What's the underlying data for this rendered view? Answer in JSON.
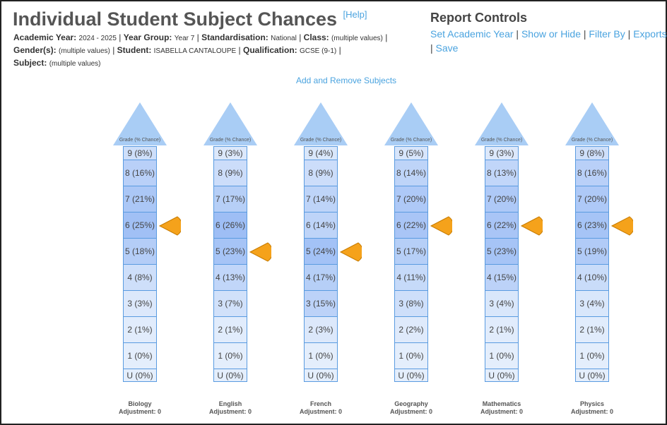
{
  "header": {
    "title": "Individual Student Subject Chances",
    "help_label": "[Help]"
  },
  "filters": {
    "academic_year_label": "Academic Year:",
    "academic_year": "2024 - 2025",
    "year_group_label": "Year Group:",
    "year_group": "Year 7",
    "standardisation_label": "Standardisation:",
    "standardisation": "National",
    "class_label": "Class:",
    "class": "(multiple values)",
    "gender_label": "Gender(s):",
    "gender": "(multiple values)",
    "student_label": "Student:",
    "student": "ISABELLA CANTALOUPE",
    "qualification_label": "Qualification:",
    "qualification": "GCSE (9-1)",
    "subject_label": "Subject:",
    "subject": "(multiple values)",
    "separator": "|"
  },
  "controls": {
    "title": "Report Controls",
    "links": [
      "Set Academic Year",
      "Show or Hide",
      "Filter By",
      "Exports",
      "Save"
    ]
  },
  "add_remove_label": "Add and Remove Subjects",
  "arrow_label": "Grade (% Chance)",
  "colors": {
    "accent_link": "#4aa3df",
    "arrow_fill": "#a9cdf5",
    "cell_border": "#5a9be0",
    "marker_fill": "#f5a21b",
    "marker_stroke": "#c77b00"
  },
  "subjects": [
    {
      "name": "Biology",
      "adjustment": "Adjustment: 0",
      "target_grade": "6",
      "grades": [
        {
          "grade": "9",
          "label": "9 (8%)",
          "pct": 8
        },
        {
          "grade": "8",
          "label": "8 (16%)",
          "pct": 16
        },
        {
          "grade": "7",
          "label": "7 (21%)",
          "pct": 21
        },
        {
          "grade": "6",
          "label": "6 (25%)",
          "pct": 25
        },
        {
          "grade": "5",
          "label": "5 (18%)",
          "pct": 18
        },
        {
          "grade": "4",
          "label": "4 (8%)",
          "pct": 8
        },
        {
          "grade": "3",
          "label": "3 (3%)",
          "pct": 3
        },
        {
          "grade": "2",
          "label": "2 (1%)",
          "pct": 1
        },
        {
          "grade": "1",
          "label": "1 (0%)",
          "pct": 0
        },
        {
          "grade": "U",
          "label": "U (0%)",
          "pct": 0
        }
      ]
    },
    {
      "name": "English",
      "adjustment": "Adjustment: 0",
      "target_grade": "5",
      "grades": [
        {
          "grade": "9",
          "label": "9 (3%)",
          "pct": 3
        },
        {
          "grade": "8",
          "label": "8 (9%)",
          "pct": 9
        },
        {
          "grade": "7",
          "label": "7 (17%)",
          "pct": 17
        },
        {
          "grade": "6",
          "label": "6 (26%)",
          "pct": 26
        },
        {
          "grade": "5",
          "label": "5 (23%)",
          "pct": 23
        },
        {
          "grade": "4",
          "label": "4 (13%)",
          "pct": 13
        },
        {
          "grade": "3",
          "label": "3 (7%)",
          "pct": 7
        },
        {
          "grade": "2",
          "label": "2 (1%)",
          "pct": 1
        },
        {
          "grade": "1",
          "label": "1 (0%)",
          "pct": 0
        },
        {
          "grade": "U",
          "label": "U (0%)",
          "pct": 0
        }
      ]
    },
    {
      "name": "French",
      "adjustment": "Adjustment: 0",
      "target_grade": "5",
      "grades": [
        {
          "grade": "9",
          "label": "9 (4%)",
          "pct": 4
        },
        {
          "grade": "8",
          "label": "8 (9%)",
          "pct": 9
        },
        {
          "grade": "7",
          "label": "7 (14%)",
          "pct": 14
        },
        {
          "grade": "6",
          "label": "6 (14%)",
          "pct": 14
        },
        {
          "grade": "5",
          "label": "5 (24%)",
          "pct": 24
        },
        {
          "grade": "4",
          "label": "4 (17%)",
          "pct": 17
        },
        {
          "grade": "3",
          "label": "3 (15%)",
          "pct": 15
        },
        {
          "grade": "2",
          "label": "2 (3%)",
          "pct": 3
        },
        {
          "grade": "1",
          "label": "1 (0%)",
          "pct": 0
        },
        {
          "grade": "U",
          "label": "U (0%)",
          "pct": 0
        }
      ]
    },
    {
      "name": "Geography",
      "adjustment": "Adjustment: 0",
      "target_grade": "6",
      "grades": [
        {
          "grade": "9",
          "label": "9 (5%)",
          "pct": 5
        },
        {
          "grade": "8",
          "label": "8 (14%)",
          "pct": 14
        },
        {
          "grade": "7",
          "label": "7 (20%)",
          "pct": 20
        },
        {
          "grade": "6",
          "label": "6 (22%)",
          "pct": 22
        },
        {
          "grade": "5",
          "label": "5 (17%)",
          "pct": 17
        },
        {
          "grade": "4",
          "label": "4 (11%)",
          "pct": 11
        },
        {
          "grade": "3",
          "label": "3 (8%)",
          "pct": 8
        },
        {
          "grade": "2",
          "label": "2 (2%)",
          "pct": 2
        },
        {
          "grade": "1",
          "label": "1 (0%)",
          "pct": 0
        },
        {
          "grade": "U",
          "label": "U (0%)",
          "pct": 0
        }
      ]
    },
    {
      "name": "Mathematics",
      "adjustment": "Adjustment: 0",
      "target_grade": "6",
      "grades": [
        {
          "grade": "9",
          "label": "9 (3%)",
          "pct": 3
        },
        {
          "grade": "8",
          "label": "8 (13%)",
          "pct": 13
        },
        {
          "grade": "7",
          "label": "7 (20%)",
          "pct": 20
        },
        {
          "grade": "6",
          "label": "6 (22%)",
          "pct": 22
        },
        {
          "grade": "5",
          "label": "5 (23%)",
          "pct": 23
        },
        {
          "grade": "4",
          "label": "4 (15%)",
          "pct": 15
        },
        {
          "grade": "3",
          "label": "3 (4%)",
          "pct": 4
        },
        {
          "grade": "2",
          "label": "2 (1%)",
          "pct": 1
        },
        {
          "grade": "1",
          "label": "1 (0%)",
          "pct": 0
        },
        {
          "grade": "U",
          "label": "U (0%)",
          "pct": 0
        }
      ]
    },
    {
      "name": "Physics",
      "adjustment": "Adjustment: 0",
      "target_grade": "6",
      "grades": [
        {
          "grade": "9",
          "label": "9 (8%)",
          "pct": 8
        },
        {
          "grade": "8",
          "label": "8 (16%)",
          "pct": 16
        },
        {
          "grade": "7",
          "label": "7 (20%)",
          "pct": 20
        },
        {
          "grade": "6",
          "label": "6 (23%)",
          "pct": 23
        },
        {
          "grade": "5",
          "label": "5 (19%)",
          "pct": 19
        },
        {
          "grade": "4",
          "label": "4 (10%)",
          "pct": 10
        },
        {
          "grade": "3",
          "label": "3 (4%)",
          "pct": 4
        },
        {
          "grade": "2",
          "label": "2 (1%)",
          "pct": 1
        },
        {
          "grade": "1",
          "label": "1 (0%)",
          "pct": 0
        },
        {
          "grade": "U",
          "label": "U (0%)",
          "pct": 0
        }
      ]
    }
  ]
}
